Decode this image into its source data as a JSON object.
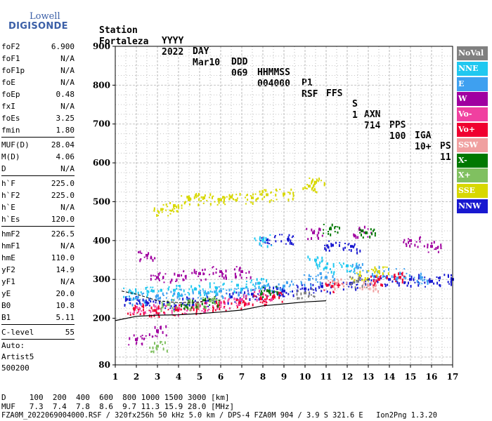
{
  "logo": {
    "line1": "Lowell",
    "line2": "DIGISONDE"
  },
  "header": {
    "cols": [
      {
        "label": "Station",
        "value": "Fortaleza"
      },
      {
        "label": "YYYY",
        "value": "2022"
      },
      {
        "label": "DAY",
        "value": "Mar10"
      },
      {
        "label": "DDD",
        "value": "069"
      },
      {
        "label": "HHMMSS",
        "value": "004000"
      },
      {
        "label": "P1",
        "value": "RSF"
      },
      {
        "label": "FFS",
        "value": ""
      },
      {
        "label": "S",
        "value": "1"
      },
      {
        "label": "AXN",
        "value": "714"
      },
      {
        "label": "PPS",
        "value": "100"
      },
      {
        "label": "IGA",
        "value": "10+"
      },
      {
        "label": "PS",
        "value": "11"
      }
    ]
  },
  "params": {
    "group1": [
      {
        "name": "foF2",
        "value": "6.900"
      },
      {
        "name": "foF1",
        "value": "N/A"
      },
      {
        "name": "foF1p",
        "value": "N/A"
      },
      {
        "name": "foE",
        "value": "N/A"
      },
      {
        "name": "foEp",
        "value": "0.48"
      },
      {
        "name": "fxI",
        "value": "N/A"
      },
      {
        "name": "foEs",
        "value": "3.25"
      },
      {
        "name": "fmin",
        "value": "1.80"
      }
    ],
    "group2": [
      {
        "name": "MUF(D)",
        "value": "28.04"
      },
      {
        "name": "M(D)",
        "value": "4.06"
      },
      {
        "name": "D",
        "value": "N/A"
      }
    ],
    "group3": [
      {
        "name": "h`F",
        "value": "225.0"
      },
      {
        "name": "h`F2",
        "value": "225.0"
      },
      {
        "name": "h`E",
        "value": "N/A"
      },
      {
        "name": "h`Es",
        "value": "120.0"
      }
    ],
    "group4": [
      {
        "name": "hmF2",
        "value": "226.5"
      },
      {
        "name": "hmF1",
        "value": "N/A"
      },
      {
        "name": "hmE",
        "value": "110.0"
      },
      {
        "name": "yF2",
        "value": "14.9"
      },
      {
        "name": "yF1",
        "value": "N/A"
      },
      {
        "name": "yE",
        "value": "20.0"
      },
      {
        "name": "B0",
        "value": "10.8"
      },
      {
        "name": "B1",
        "value": "5.11"
      }
    ],
    "group5": [
      {
        "name": "C-level",
        "value": "55"
      }
    ]
  },
  "auto": {
    "line1": "Auto:",
    "line2": "Artist5",
    "line3": "500200"
  },
  "legend": [
    {
      "label": "NoVal",
      "color": "#808080"
    },
    {
      "label": "NNE",
      "color": "#20c8f0"
    },
    {
      "label": "E",
      "color": "#3ea0f0"
    },
    {
      "label": "W",
      "color": "#a000a0"
    },
    {
      "label": "Vo-",
      "color": "#f040a0"
    },
    {
      "label": "Vo+",
      "color": "#f00030"
    },
    {
      "label": "SSW",
      "color": "#f0a0a0"
    },
    {
      "label": "X-",
      "color": "#007800"
    },
    {
      "label": "X+",
      "color": "#80c060"
    },
    {
      "label": "SSE",
      "color": "#d8d800"
    },
    {
      "label": "NNW",
      "color": "#1818d0"
    }
  ],
  "footer": {
    "line1": "D     100  200  400  600  800 1000 1500 3000 [km]",
    "line2": "MUF   7.3  7.4  7.8  8.6  9.7 11.3 15.9 28.0 [MHz]",
    "line3": "FZA0M_2022069004000.RSF / 320fx256h 50 kHz 5.0 km / DPS-4 FZA0M 904 / 3.9 S 321.6 E   Ion2Png 1.3.20"
  },
  "chart_data": {
    "type": "scatter",
    "title": "",
    "xlabel": "",
    "ylabel": "",
    "xlim": [
      1,
      17
    ],
    "ylim": [
      80,
      900
    ],
    "x_ticks": [
      "1",
      "2",
      "3",
      "4",
      "5",
      "6",
      "7",
      "8",
      "9",
      "10",
      "11",
      "12",
      "13",
      "14",
      "15",
      "16",
      "17"
    ],
    "y_ticks": [
      "80",
      "200",
      "300",
      "400",
      "500",
      "600",
      "700",
      "800",
      "900"
    ],
    "grid": true,
    "legend_position": "right",
    "series": [
      {
        "name": "NNW",
        "color": "#1818d0",
        "values": [
          [
            1.7,
            248
          ],
          [
            2.5,
            240
          ],
          [
            3.5,
            238
          ],
          [
            4.5,
            242
          ],
          [
            5.5,
            246
          ],
          [
            6.5,
            255
          ],
          [
            7.5,
            262
          ],
          [
            8.5,
            268
          ],
          [
            9.0,
            270
          ],
          [
            10.0,
            276
          ],
          [
            10.8,
            282
          ],
          [
            12.2,
            290
          ],
          [
            13.0,
            300
          ],
          [
            14.0,
            300
          ],
          [
            15.0,
            300
          ],
          [
            16.0,
            295
          ],
          [
            17.0,
            300
          ],
          [
            8.2,
            402
          ],
          [
            9.2,
            403
          ],
          [
            11.3,
            388
          ],
          [
            12.2,
            385
          ]
        ]
      },
      {
        "name": "E",
        "color": "#3ea0f0",
        "values": [
          [
            2.0,
            252
          ],
          [
            3.0,
            258
          ],
          [
            4.0,
            262
          ],
          [
            5.0,
            265
          ],
          [
            6.0,
            270
          ],
          [
            7.0,
            275
          ],
          [
            8.0,
            280
          ],
          [
            9.0,
            283
          ],
          [
            10.2,
            300
          ],
          [
            11.0,
            305
          ],
          [
            12.5,
            330
          ],
          [
            13.5,
            320
          ],
          [
            14.5,
            315
          ],
          [
            15.5,
            305
          ]
        ]
      },
      {
        "name": "NNE",
        "color": "#20c8f0",
        "values": [
          [
            1.8,
            265
          ],
          [
            2.8,
            270
          ],
          [
            3.8,
            272
          ],
          [
            4.8,
            275
          ],
          [
            5.8,
            278
          ],
          [
            6.8,
            285
          ],
          [
            7.8,
            290
          ],
          [
            8.0,
            402
          ],
          [
            10.5,
            350
          ],
          [
            11.0,
            330
          ],
          [
            12.0,
            335
          ]
        ]
      },
      {
        "name": "W",
        "color": "#a000a0",
        "values": [
          [
            2.5,
            362
          ],
          [
            3.0,
            305
          ],
          [
            4.0,
            310
          ],
          [
            5.0,
            315
          ],
          [
            6.0,
            320
          ],
          [
            7.0,
            320
          ],
          [
            3.0,
            168
          ],
          [
            2.0,
            145
          ],
          [
            10.4,
            420
          ],
          [
            12.7,
            425
          ],
          [
            15.0,
            400
          ],
          [
            16.0,
            385
          ]
        ]
      },
      {
        "name": "Vo-",
        "color": "#f040a0",
        "values": [
          [
            2.0,
            228
          ],
          [
            3.0,
            225
          ],
          [
            4.0,
            225
          ],
          [
            5.0,
            232
          ],
          [
            6.0,
            240
          ],
          [
            7.0,
            248
          ],
          [
            8.0,
            262
          ]
        ]
      },
      {
        "name": "Vo+",
        "color": "#f00030",
        "values": [
          [
            1.9,
            225
          ],
          [
            2.9,
            220
          ],
          [
            3.9,
            222
          ],
          [
            4.9,
            228
          ],
          [
            5.9,
            234
          ],
          [
            6.9,
            240
          ],
          [
            7.9,
            250
          ],
          [
            8.5,
            255
          ],
          [
            11.3,
            282
          ],
          [
            13.5,
            300
          ],
          [
            14.5,
            305
          ]
        ]
      },
      {
        "name": "X-",
        "color": "#007800",
        "values": [
          [
            4.5,
            241
          ],
          [
            5.5,
            245
          ],
          [
            8.3,
            270
          ],
          [
            11.2,
            430
          ],
          [
            12.9,
            420
          ]
        ]
      },
      {
        "name": "X+",
        "color": "#80c060",
        "values": [
          [
            3.5,
            235
          ],
          [
            4.5,
            240
          ],
          [
            5.5,
            245
          ],
          [
            3.0,
            128
          ]
        ]
      },
      {
        "name": "SSE",
        "color": "#d8d800",
        "values": [
          [
            3.2,
            480
          ],
          [
            3.8,
            490
          ],
          [
            4.5,
            505
          ],
          [
            5.2,
            510
          ],
          [
            6.0,
            505
          ],
          [
            6.5,
            512
          ],
          [
            7.5,
            510
          ],
          [
            8.2,
            518
          ],
          [
            9.0,
            520
          ],
          [
            10.2,
            540
          ],
          [
            10.5,
            550
          ],
          [
            12.6,
            310
          ],
          [
            13.5,
            320
          ]
        ]
      },
      {
        "name": "SSW",
        "color": "#f0a0a0",
        "values": [
          [
            11.5,
            290
          ],
          [
            13.0,
            285
          ]
        ]
      },
      {
        "name": "NoVal",
        "color": "#808080",
        "values": [
          [
            10.0,
            265
          ],
          [
            12.5,
            295
          ]
        ]
      }
    ]
  }
}
